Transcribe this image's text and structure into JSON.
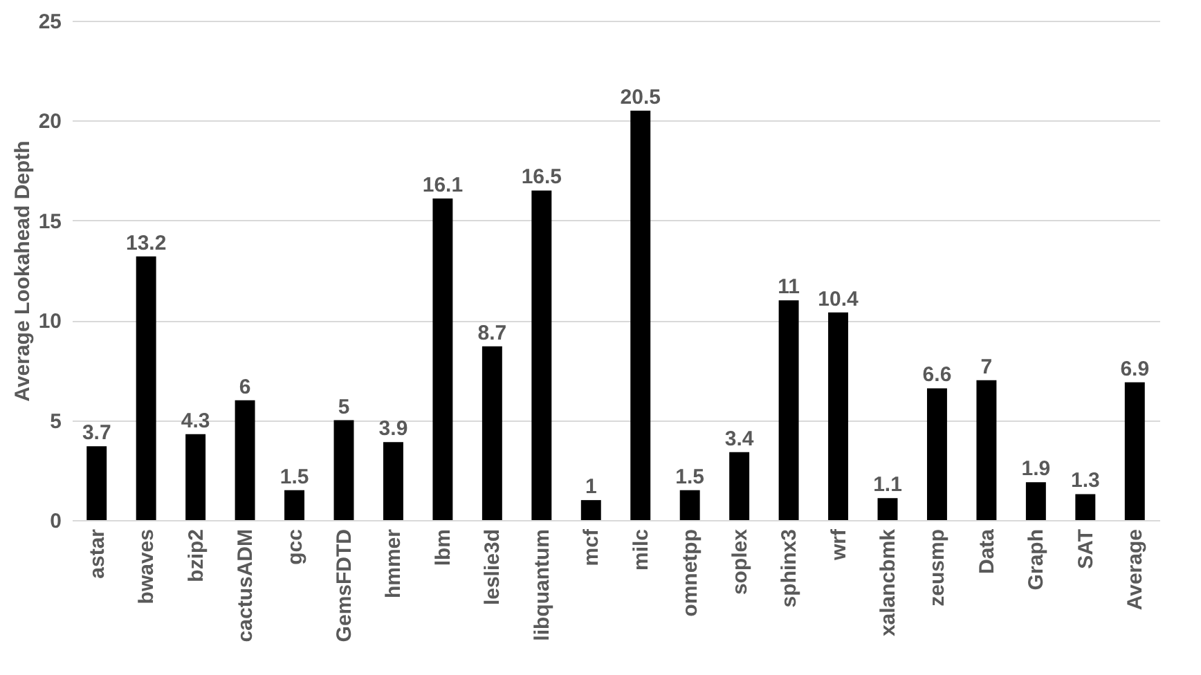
{
  "chart_data": {
    "type": "bar",
    "ylabel": "Average Lookahead Depth",
    "categories": [
      "astar",
      "bwaves",
      "bzip2",
      "cactusADM",
      "gcc",
      "GemsFDTD",
      "hmmer",
      "lbm",
      "leslie3d",
      "libquantum",
      "mcf",
      "milc",
      "omnetpp",
      "soplex",
      "sphinx3",
      "wrf",
      "xalancbmk",
      "zeusmp",
      "Data",
      "Graph",
      "SAT",
      "Average"
    ],
    "values": [
      3.7,
      13.2,
      4.3,
      6,
      1.5,
      5,
      3.9,
      16.1,
      8.7,
      16.5,
      1,
      20.5,
      1.5,
      3.4,
      11,
      10.4,
      1.1,
      6.6,
      7,
      1.9,
      1.3,
      6.9
    ],
    "color": "#000000",
    "ylim": [
      0,
      25
    ],
    "yticks": [
      0,
      5,
      10,
      15,
      20,
      25
    ],
    "grid": "y",
    "data_labels": true
  }
}
